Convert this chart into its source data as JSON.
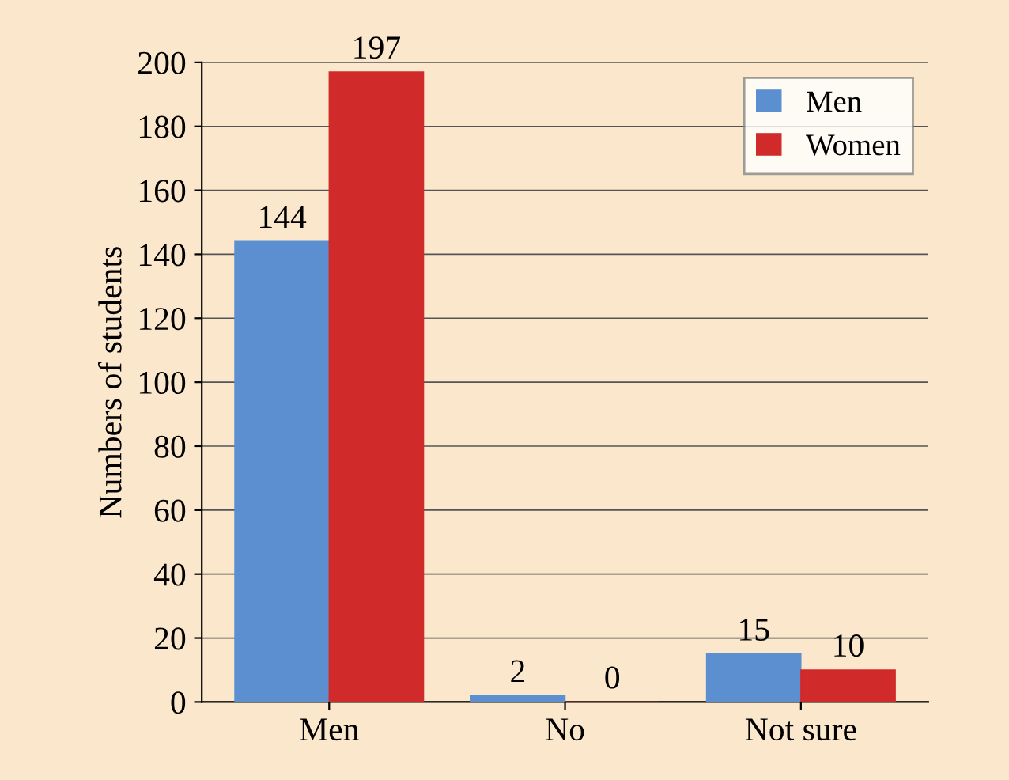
{
  "chart_data": {
    "type": "bar",
    "ylabel": "Numbers of students",
    "categories": [
      "Men",
      "No",
      "Not sure"
    ],
    "series": [
      {
        "name": "Men",
        "color": "#5b8fd0",
        "values": [
          144,
          2,
          15
        ]
      },
      {
        "name": "Women",
        "color": "#d02a2a",
        "values": [
          197,
          0,
          10
        ]
      }
    ],
    "ylim": [
      0,
      200
    ],
    "yticks": [
      0,
      20,
      40,
      60,
      80,
      100,
      120,
      140,
      160,
      180,
      200
    ],
    "grid": "y",
    "legend": "top right",
    "data_labels": true
  }
}
